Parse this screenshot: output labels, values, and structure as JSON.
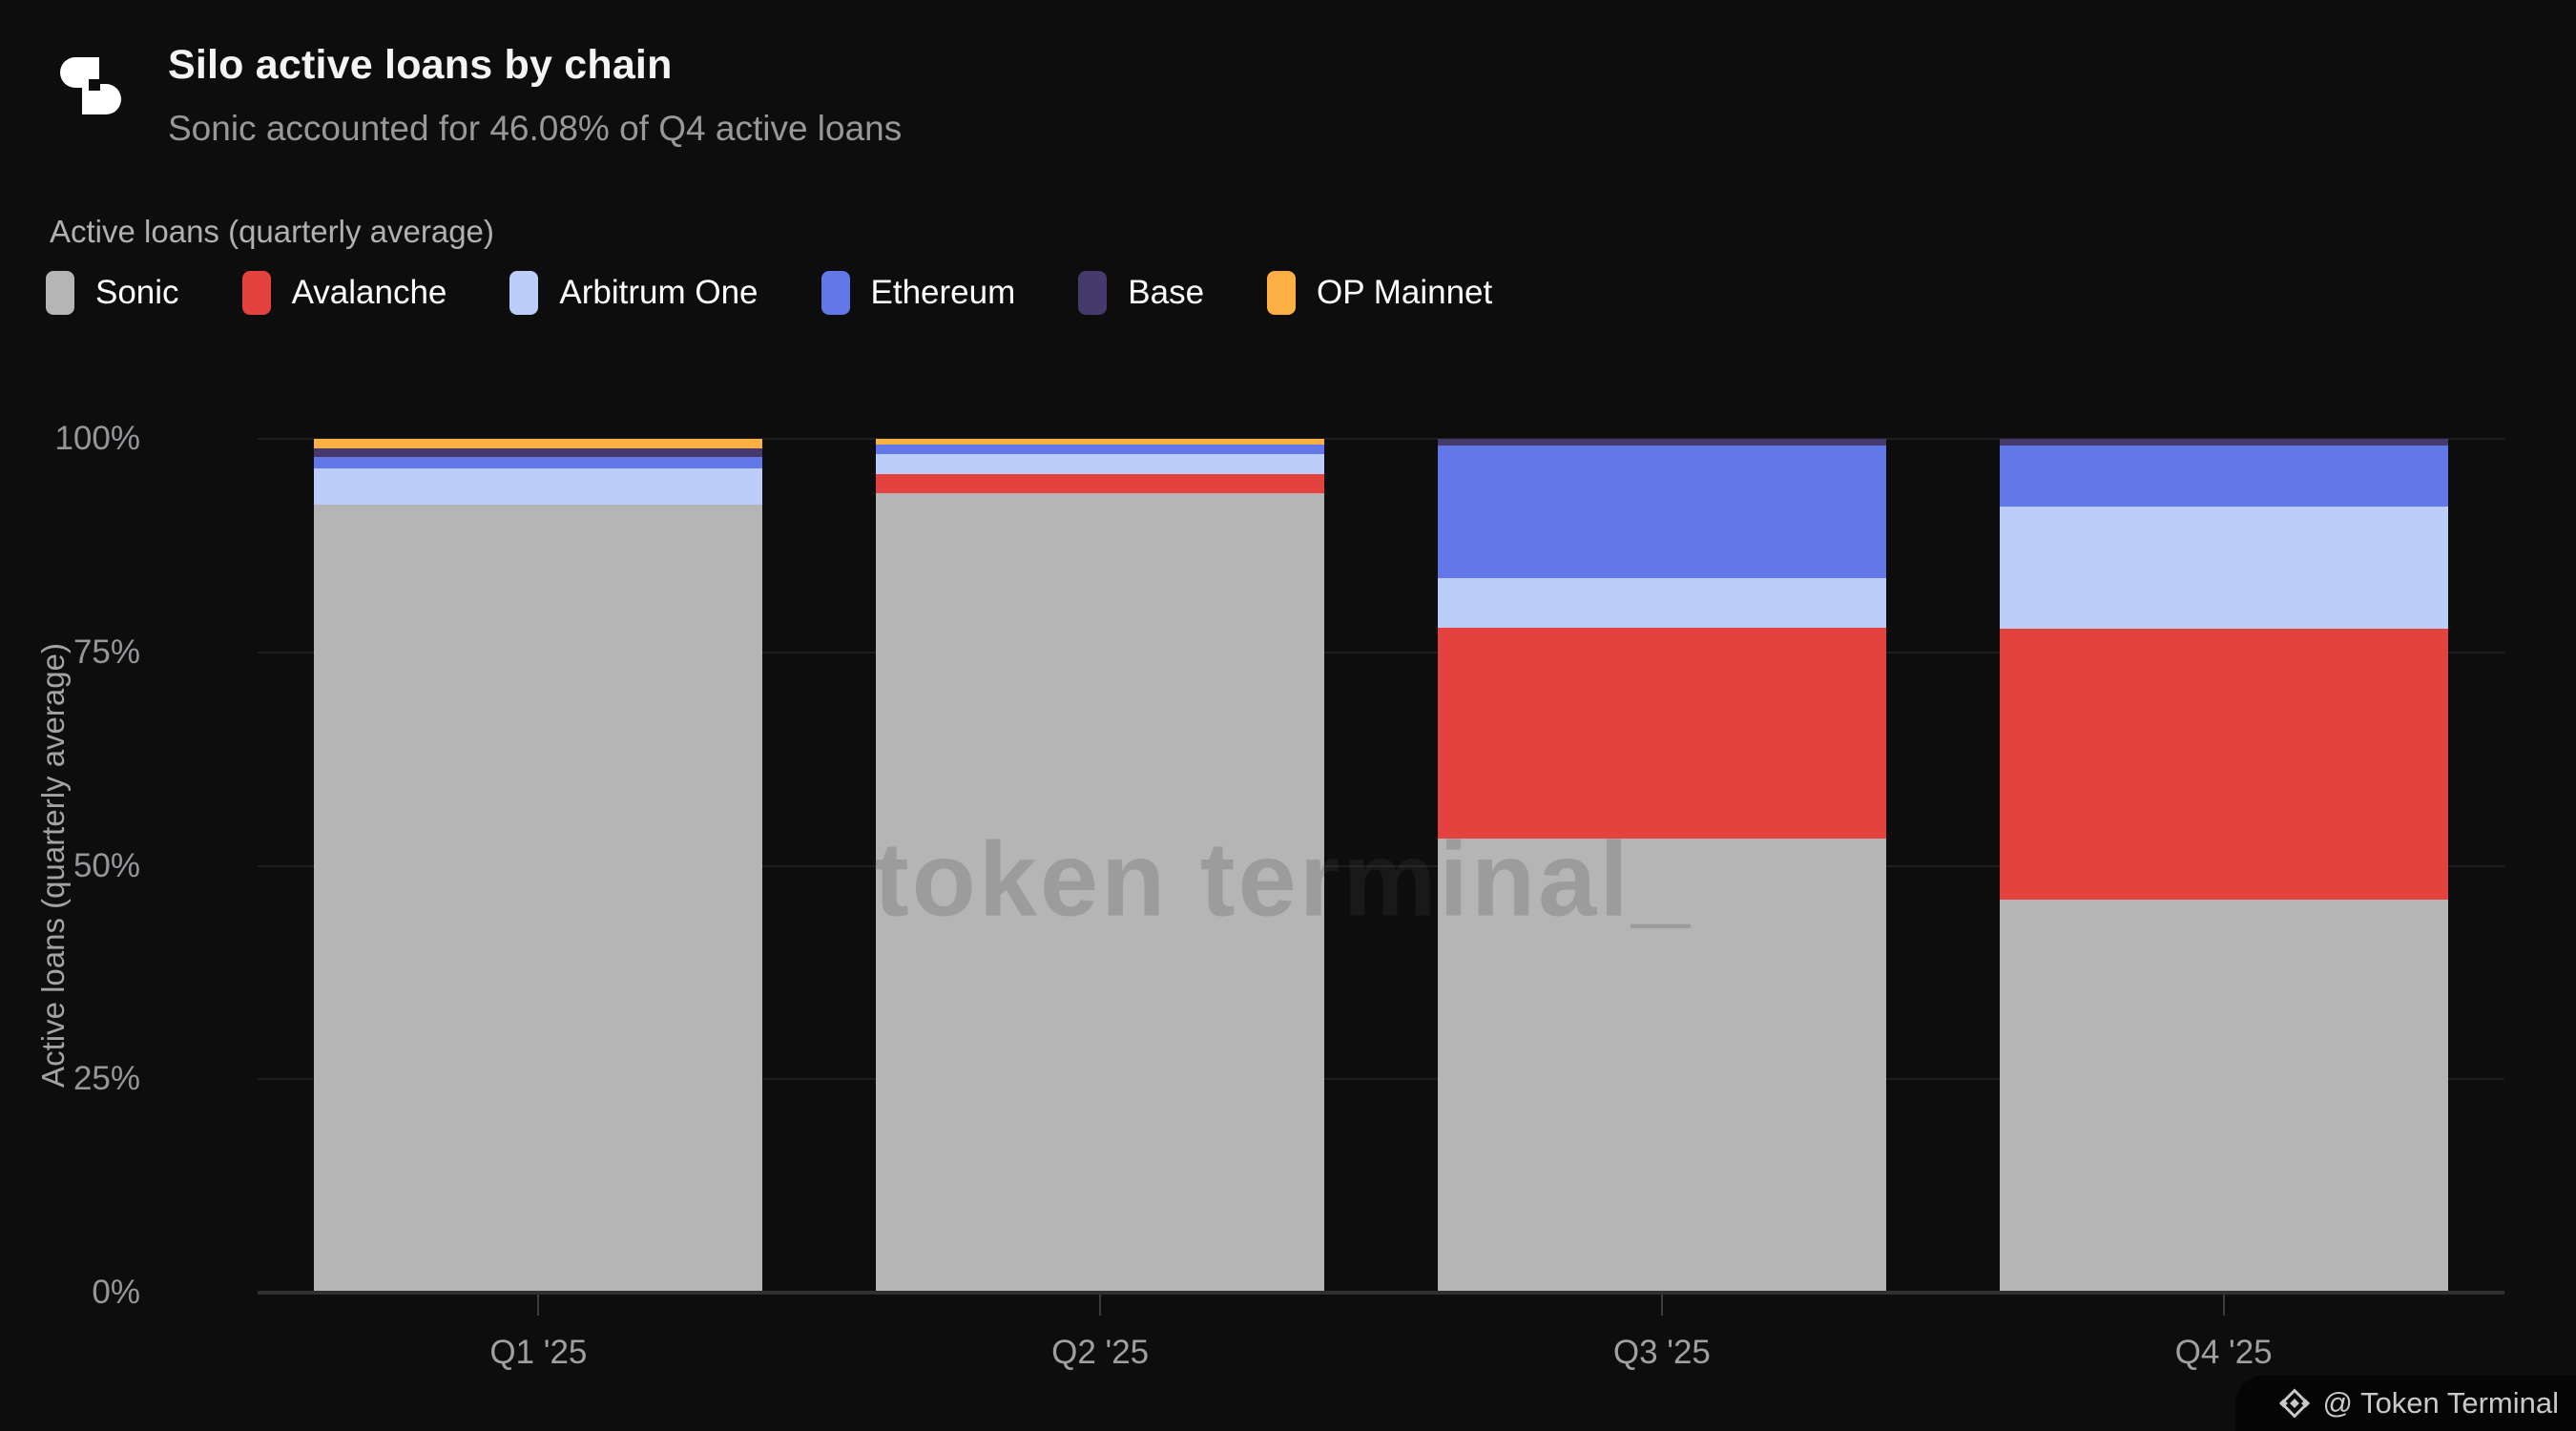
{
  "header": {
    "title": "Silo active loans by chain",
    "subtitle": "Sonic accounted for 46.08% of Q4 active loans"
  },
  "legend": {
    "title": "Active loans (quarterly average)",
    "items": [
      {
        "label": "Sonic",
        "color": "#b5b5b5"
      },
      {
        "label": "Avalanche",
        "color": "#e4423f"
      },
      {
        "label": "Arbitrum One",
        "color": "#bdcdf9"
      },
      {
        "label": "Ethereum",
        "color": "#6277e8"
      },
      {
        "label": "Base",
        "color": "#46396b"
      },
      {
        "label": "OP Mainnet",
        "color": "#fcb043"
      }
    ]
  },
  "watermark": "token terminal_",
  "attribution": "@ Token Terminal",
  "colors": {
    "background": "#0d0d0e",
    "gridline": "#1e1e20",
    "axis_line": "#303033",
    "accent_red": "#e4423f",
    "accent_blue": "#6277e8"
  },
  "chart_data": {
    "type": "bar",
    "variant": "stacked-100-percent",
    "title": "Silo active loans by chain",
    "subtitle": "Sonic accounted for 46.08% of Q4 active loans",
    "xlabel": "",
    "ylabel": "Active loans (quarterly average)",
    "ylim": [
      0,
      100
    ],
    "yticks": [
      "0%",
      "25%",
      "50%",
      "75%",
      "100%"
    ],
    "grid": true,
    "legend_position": "top",
    "categories": [
      "Q1 '25",
      "Q2 '25",
      "Q3 '25",
      "Q4 '25"
    ],
    "series": [
      {
        "name": "Sonic",
        "color": "#b5b5b5",
        "values": [
          92.3,
          93.6,
          53.2,
          46.08
        ]
      },
      {
        "name": "Avalanche",
        "color": "#e4423f",
        "values": [
          0,
          2.3,
          24.7,
          31.64
        ]
      },
      {
        "name": "Arbitrum One",
        "color": "#bdcdf9",
        "values": [
          4.2,
          2.3,
          5.8,
          14.3
        ]
      },
      {
        "name": "Ethereum",
        "color": "#6277e8",
        "values": [
          1.4,
          1.1,
          15.5,
          7.2
        ]
      },
      {
        "name": "Base",
        "color": "#46396b",
        "values": [
          1.0,
          0,
          0.8,
          0.78
        ]
      },
      {
        "name": "OP Mainnet",
        "color": "#fcb043",
        "values": [
          1.1,
          0.7,
          0,
          0
        ]
      }
    ]
  }
}
